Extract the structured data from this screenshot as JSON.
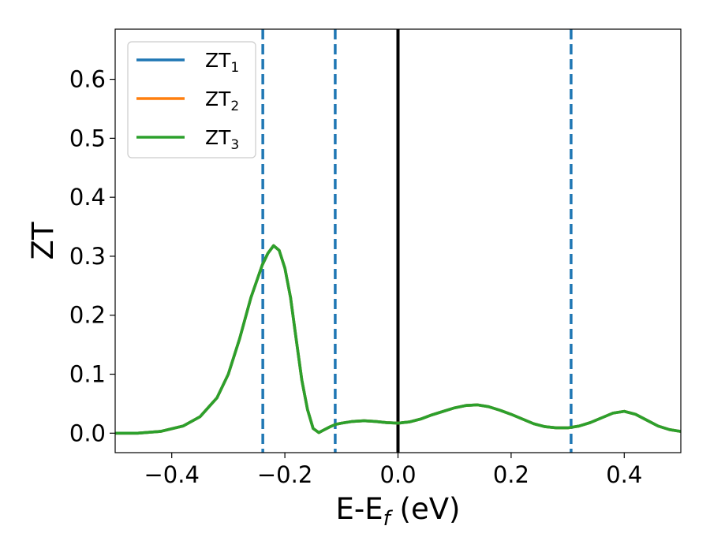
{
  "chart_data": {
    "type": "line",
    "xlabel": {
      "main": "E-E",
      "sub": "f",
      "tail": " (eV)"
    },
    "ylabel": "ZT",
    "xlim": [
      -0.5,
      0.5
    ],
    "ylim": [
      -0.033,
      0.685
    ],
    "x_ticks": [
      -0.4,
      -0.2,
      0.0,
      0.2,
      0.4
    ],
    "x_tick_labels": [
      "−0.4",
      "−0.2",
      "0.0",
      "0.2",
      "0.4"
    ],
    "y_ticks": [
      0.0,
      0.1,
      0.2,
      0.3,
      0.4,
      0.5,
      0.6
    ],
    "y_tick_labels": [
      "0.0",
      "0.1",
      "0.2",
      "0.3",
      "0.4",
      "0.5",
      "0.6"
    ],
    "legend_position": "top-left",
    "grid": false,
    "vertical_lines": [
      {
        "x": -0.239,
        "style": "dashed",
        "color": "#1f77b4"
      },
      {
        "x": -0.111,
        "style": "dashed",
        "color": "#1f77b4"
      },
      {
        "x": 0.0,
        "style": "solid",
        "color": "#000000"
      },
      {
        "x": 0.306,
        "style": "dashed",
        "color": "#1f77b4"
      }
    ],
    "x": [
      -0.5,
      -0.46,
      -0.42,
      -0.38,
      -0.35,
      -0.32,
      -0.3,
      -0.28,
      -0.26,
      -0.24,
      -0.23,
      -0.22,
      -0.21,
      -0.2,
      -0.19,
      -0.18,
      -0.17,
      -0.16,
      -0.15,
      -0.14,
      -0.13,
      -0.12,
      -0.11,
      -0.1,
      -0.08,
      -0.06,
      -0.04,
      -0.02,
      0.0,
      0.02,
      0.04,
      0.06,
      0.08,
      0.1,
      0.12,
      0.14,
      0.16,
      0.18,
      0.2,
      0.22,
      0.24,
      0.26,
      0.28,
      0.3,
      0.32,
      0.34,
      0.36,
      0.38,
      0.4,
      0.42,
      0.44,
      0.46,
      0.48,
      0.5
    ],
    "series": [
      {
        "name": "ZT₁",
        "label_main": "ZT",
        "label_sub": "1",
        "color": "#1f77b4",
        "values": [
          0.0,
          0.0,
          0.003,
          0.012,
          0.028,
          0.06,
          0.1,
          0.16,
          0.23,
          0.285,
          0.305,
          0.318,
          0.31,
          0.28,
          0.23,
          0.16,
          0.09,
          0.04,
          0.008,
          0.001,
          0.006,
          0.011,
          0.015,
          0.017,
          0.02,
          0.021,
          0.02,
          0.018,
          0.017,
          0.019,
          0.024,
          0.031,
          0.037,
          0.043,
          0.047,
          0.048,
          0.045,
          0.039,
          0.032,
          0.024,
          0.016,
          0.011,
          0.009,
          0.009,
          0.012,
          0.018,
          0.026,
          0.034,
          0.037,
          0.032,
          0.022,
          0.012,
          0.006,
          0.003
        ]
      },
      {
        "name": "ZT₂",
        "label_main": "ZT",
        "label_sub": "2",
        "color": "#ff7f0e",
        "values": [
          0.0,
          0.0,
          0.003,
          0.012,
          0.028,
          0.06,
          0.1,
          0.16,
          0.23,
          0.285,
          0.305,
          0.318,
          0.31,
          0.28,
          0.23,
          0.16,
          0.09,
          0.04,
          0.008,
          0.001,
          0.006,
          0.011,
          0.015,
          0.017,
          0.02,
          0.021,
          0.02,
          0.018,
          0.017,
          0.019,
          0.024,
          0.031,
          0.037,
          0.043,
          0.047,
          0.048,
          0.045,
          0.039,
          0.032,
          0.024,
          0.016,
          0.011,
          0.009,
          0.009,
          0.012,
          0.018,
          0.026,
          0.034,
          0.037,
          0.032,
          0.022,
          0.012,
          0.006,
          0.003
        ]
      },
      {
        "name": "ZT₃",
        "label_main": "ZT",
        "label_sub": "3",
        "color": "#2ca02c",
        "values": [
          0.0,
          0.0,
          0.003,
          0.012,
          0.028,
          0.06,
          0.1,
          0.16,
          0.23,
          0.285,
          0.305,
          0.318,
          0.31,
          0.28,
          0.23,
          0.16,
          0.09,
          0.04,
          0.008,
          0.001,
          0.006,
          0.011,
          0.015,
          0.017,
          0.02,
          0.021,
          0.02,
          0.018,
          0.017,
          0.019,
          0.024,
          0.031,
          0.037,
          0.043,
          0.047,
          0.048,
          0.045,
          0.039,
          0.032,
          0.024,
          0.016,
          0.011,
          0.009,
          0.009,
          0.012,
          0.018,
          0.026,
          0.034,
          0.037,
          0.032,
          0.022,
          0.012,
          0.006,
          0.003
        ]
      }
    ]
  }
}
